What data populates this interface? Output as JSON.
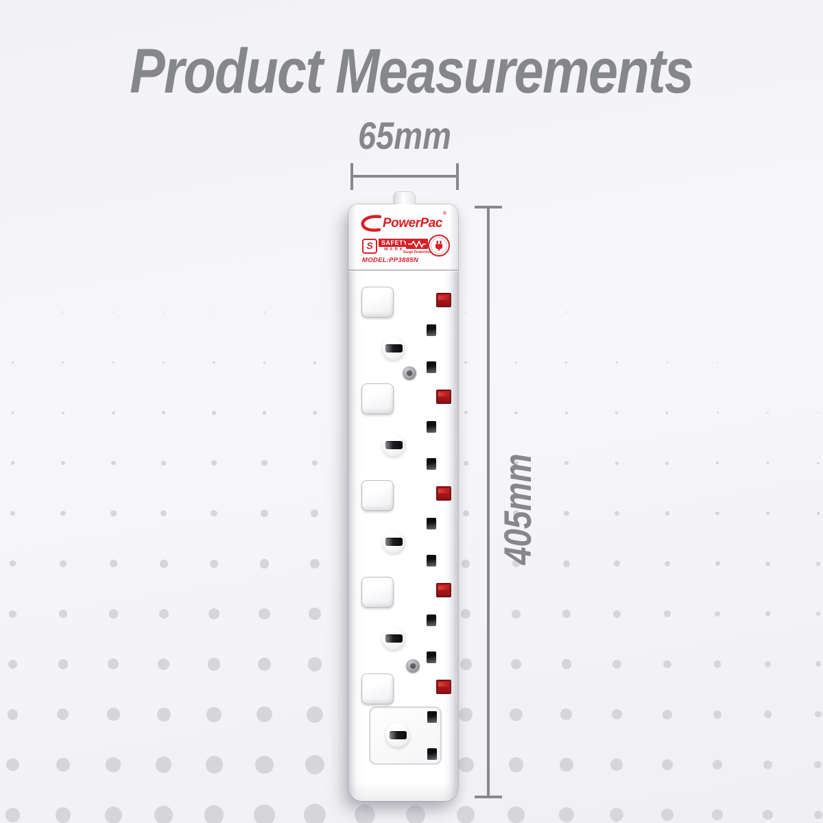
{
  "title": "Product Measurements",
  "dimensions": {
    "width": "65mm",
    "height": "405mm"
  },
  "product": {
    "brand": "PowerPac",
    "registered_mark": "®",
    "model": "MODEL:PP3885N",
    "socket_count": 5,
    "badges": {
      "safety_initial": "S",
      "safety_word1": "SAFETY",
      "safety_word2": "MARK",
      "surge_label": "Surge Protection"
    }
  },
  "colors": {
    "measure_gray": "#85878b",
    "brand_red": "#d81f26",
    "indicator_red": "#b2161d",
    "dot_gray": "#d6d6da",
    "background": "#f3f3f6"
  }
}
